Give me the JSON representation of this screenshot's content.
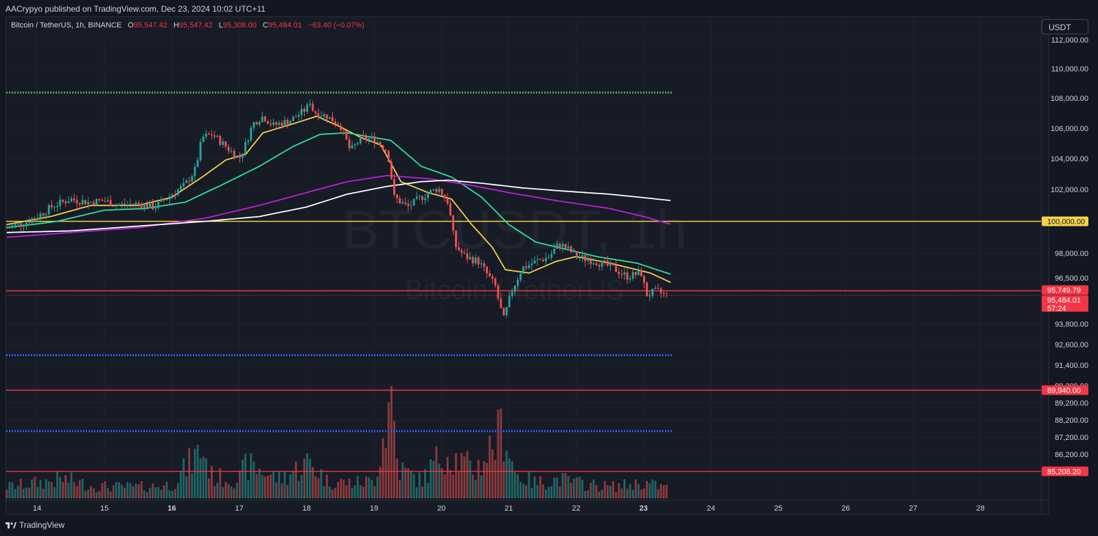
{
  "header": {
    "published": "AACrypyo published on TradingView.com, Dec 23, 2024 10:02 UTC+11"
  },
  "legend": {
    "symbol": "Bitcoin / TetherUS, 1h, BINANCE",
    "o_label": "O",
    "o_value": "95,547.42",
    "h_label": "H",
    "h_value": "95,547.42",
    "l_label": "L",
    "l_value": "95,308.00",
    "c_label": "C",
    "c_value": "95,484.01",
    "change": "−63.40 (−0.07%)"
  },
  "currency_button": "USDT",
  "watermark": {
    "main": "BTCUSDT, 1h",
    "sub": "Bitcoin / TetherUS"
  },
  "footer": {
    "brand": "TradingView"
  },
  "colors": {
    "background": "#131722",
    "plot_bg": "#171b26",
    "up": "#26a69a",
    "down": "#ef5350",
    "ema_fast": "#f5d24a",
    "ema_mid": "#2ee39a",
    "sma_200": "#c11fd8",
    "ema_200": "#ffffff",
    "level_green": "#4caf50",
    "level_blue": "#2962ff",
    "level_red": "#f23645",
    "level_yellow": "#f5d24a"
  },
  "chart_data": {
    "type": "candlestick",
    "symbol": "BTCUSDT",
    "timeframe": "1h",
    "y_axis": {
      "ticks": [
        {
          "value": 112000,
          "label": "112,000.00"
        },
        {
          "value": 110000,
          "label": "110,000.00"
        },
        {
          "value": 108000,
          "label": "108,000.00"
        },
        {
          "value": 106000,
          "label": "106,000.00"
        },
        {
          "value": 104000,
          "label": "104,000.00"
        },
        {
          "value": 102000,
          "label": "102,000.00"
        },
        {
          "value": 98000,
          "label": "98,000.00"
        },
        {
          "value": 96500,
          "label": "96,500.00"
        },
        {
          "value": 93800,
          "label": "93,800.00"
        },
        {
          "value": 92600,
          "label": "92,600.00"
        },
        {
          "value": 91400,
          "label": "91,400.00"
        },
        {
          "value": 90200,
          "label": "90,200.00"
        },
        {
          "value": 89200,
          "label": "89,200.00"
        },
        {
          "value": 88200,
          "label": "88,200.00"
        },
        {
          "value": 87200,
          "label": "87,200.00"
        },
        {
          "value": 86200,
          "label": "86,200.00"
        },
        {
          "value": 85200,
          "label": "85,200.00"
        }
      ]
    },
    "x_axis": {
      "ticks": [
        {
          "day": 14,
          "label": "14",
          "bold": false
        },
        {
          "day": 15,
          "label": "15",
          "bold": false
        },
        {
          "day": 16,
          "label": "16",
          "bold": true
        },
        {
          "day": 17,
          "label": "17",
          "bold": false
        },
        {
          "day": 18,
          "label": "18",
          "bold": false
        },
        {
          "day": 19,
          "label": "19",
          "bold": false
        },
        {
          "day": 20,
          "label": "20",
          "bold": false
        },
        {
          "day": 21,
          "label": "21",
          "bold": false
        },
        {
          "day": 22,
          "label": "22",
          "bold": false
        },
        {
          "day": 23,
          "label": "23",
          "bold": true
        },
        {
          "day": 24,
          "label": "24",
          "bold": false
        },
        {
          "day": 25,
          "label": "25",
          "bold": false
        },
        {
          "day": 26,
          "label": "26",
          "bold": false
        },
        {
          "day": 27,
          "label": "27",
          "bold": false
        },
        {
          "day": 28,
          "label": "28",
          "bold": false
        }
      ]
    },
    "price_anchors": [
      [
        13.55,
        99600
      ],
      [
        13.8,
        99900
      ],
      [
        14.0,
        100300
      ],
      [
        14.25,
        101000
      ],
      [
        14.5,
        101400
      ],
      [
        14.75,
        101200
      ],
      [
        15.0,
        101300
      ],
      [
        15.2,
        101000
      ],
      [
        15.5,
        101100
      ],
      [
        15.75,
        100900
      ],
      [
        16.0,
        101700
      ],
      [
        16.2,
        102300
      ],
      [
        16.35,
        103300
      ],
      [
        16.45,
        105400
      ],
      [
        16.6,
        105600
      ],
      [
        16.8,
        104800
      ],
      [
        17.0,
        104000
      ],
      [
        17.1,
        105000
      ],
      [
        17.2,
        106300
      ],
      [
        17.35,
        106800
      ],
      [
        17.5,
        106200
      ],
      [
        17.75,
        106500
      ],
      [
        18.0,
        107300
      ],
      [
        18.05,
        107800
      ],
      [
        18.1,
        107100
      ],
      [
        18.3,
        106800
      ],
      [
        18.5,
        106200
      ],
      [
        18.65,
        104500
      ],
      [
        18.8,
        105300
      ],
      [
        19.0,
        105300
      ],
      [
        19.2,
        104500
      ],
      [
        19.3,
        101500
      ],
      [
        19.5,
        100900
      ],
      [
        19.7,
        101500
      ],
      [
        19.95,
        102100
      ],
      [
        20.1,
        101200
      ],
      [
        20.2,
        98500
      ],
      [
        20.35,
        97800
      ],
      [
        20.55,
        97500
      ],
      [
        20.8,
        96000
      ],
      [
        20.92,
        94000
      ],
      [
        21.05,
        95800
      ],
      [
        21.2,
        97100
      ],
      [
        21.4,
        97500
      ],
      [
        21.6,
        97800
      ],
      [
        21.75,
        98600
      ],
      [
        21.9,
        98200
      ],
      [
        22.0,
        97800
      ],
      [
        22.3,
        97500
      ],
      [
        22.55,
        97100
      ],
      [
        22.75,
        96600
      ],
      [
        22.98,
        96800
      ],
      [
        23.03,
        95500
      ],
      [
        23.2,
        95700
      ],
      [
        23.35,
        95484
      ]
    ],
    "volume_anchors": [
      [
        13.55,
        1.2
      ],
      [
        14.0,
        1.6
      ],
      [
        14.4,
        2.0
      ],
      [
        14.8,
        1.3
      ],
      [
        15.2,
        1.2
      ],
      [
        15.6,
        1.2
      ],
      [
        16.0,
        1.4
      ],
      [
        16.45,
        5.2
      ],
      [
        16.6,
        2.2
      ],
      [
        17.0,
        2.0
      ],
      [
        17.1,
        3.4
      ],
      [
        17.3,
        3.0
      ],
      [
        17.6,
        2.0
      ],
      [
        18.05,
        3.8
      ],
      [
        18.3,
        1.8
      ],
      [
        18.7,
        1.6
      ],
      [
        19.0,
        1.8
      ],
      [
        19.27,
        11.0
      ],
      [
        19.35,
        3.2
      ],
      [
        19.7,
        1.8
      ],
      [
        20.05,
        5.0
      ],
      [
        20.2,
        4.2
      ],
      [
        20.5,
        2.8
      ],
      [
        20.85,
        6.5
      ],
      [
        20.92,
        7.6
      ],
      [
        21.1,
        2.5
      ],
      [
        21.4,
        1.6
      ],
      [
        21.75,
        2.0
      ],
      [
        22.0,
        1.6
      ],
      [
        22.5,
        1.2
      ],
      [
        23.0,
        1.6
      ],
      [
        23.35,
        1.1
      ]
    ],
    "moving_averages": [
      {
        "label": "EMA fast",
        "color": "#f5d24a",
        "anchors": [
          [
            13.55,
            99800
          ],
          [
            14.2,
            100300
          ],
          [
            14.8,
            101000
          ],
          [
            15.5,
            101000
          ],
          [
            16.0,
            101500
          ],
          [
            16.45,
            102800
          ],
          [
            16.8,
            103900
          ],
          [
            17.1,
            104300
          ],
          [
            17.35,
            105700
          ],
          [
            17.8,
            106300
          ],
          [
            18.15,
            106800
          ],
          [
            18.5,
            106100
          ],
          [
            18.8,
            105400
          ],
          [
            19.1,
            104900
          ],
          [
            19.4,
            102500
          ],
          [
            19.8,
            101800
          ],
          [
            20.15,
            101400
          ],
          [
            20.45,
            99800
          ],
          [
            20.75,
            98400
          ],
          [
            20.95,
            97000
          ],
          [
            21.3,
            96800
          ],
          [
            21.7,
            97500
          ],
          [
            22.0,
            97800
          ],
          [
            22.5,
            97400
          ],
          [
            22.9,
            97000
          ],
          [
            23.1,
            96800
          ],
          [
            23.42,
            96200
          ]
        ]
      },
      {
        "label": "EMA mid",
        "color": "#2ee39a",
        "anchors": [
          [
            13.55,
            99600
          ],
          [
            14.3,
            100000
          ],
          [
            15.0,
            100700
          ],
          [
            15.6,
            100800
          ],
          [
            16.2,
            101200
          ],
          [
            16.7,
            102200
          ],
          [
            17.3,
            103500
          ],
          [
            17.8,
            104800
          ],
          [
            18.2,
            105600
          ],
          [
            18.6,
            105700
          ],
          [
            19.25,
            105200
          ],
          [
            19.7,
            103500
          ],
          [
            20.15,
            102800
          ],
          [
            20.6,
            101500
          ],
          [
            21.0,
            99800
          ],
          [
            21.4,
            98700
          ],
          [
            21.8,
            98300
          ],
          [
            22.3,
            97800
          ],
          [
            22.9,
            97400
          ],
          [
            23.42,
            96700
          ]
        ]
      },
      {
        "label": "SMA 200",
        "color": "#c11fd8",
        "anchors": [
          [
            13.55,
            99000
          ],
          [
            14.5,
            99300
          ],
          [
            15.5,
            99600
          ],
          [
            16.5,
            100200
          ],
          [
            17.3,
            101000
          ],
          [
            18.0,
            101800
          ],
          [
            18.6,
            102500
          ],
          [
            19.2,
            102900
          ],
          [
            19.8,
            102700
          ],
          [
            20.4,
            102300
          ],
          [
            21.0,
            101800
          ],
          [
            21.7,
            101300
          ],
          [
            22.5,
            100800
          ],
          [
            23.0,
            100300
          ],
          [
            23.42,
            99800
          ]
        ]
      },
      {
        "label": "EMA 200",
        "color": "#ffffff",
        "anchors": [
          [
            13.55,
            99300
          ],
          [
            14.5,
            99400
          ],
          [
            15.5,
            99700
          ],
          [
            16.5,
            100000
          ],
          [
            17.3,
            100300
          ],
          [
            18.0,
            100900
          ],
          [
            18.6,
            101700
          ],
          [
            19.2,
            102200
          ],
          [
            19.7,
            102500
          ],
          [
            20.1,
            102600
          ],
          [
            20.6,
            102400
          ],
          [
            21.2,
            102100
          ],
          [
            21.8,
            101900
          ],
          [
            22.5,
            101700
          ],
          [
            23.42,
            101300
          ]
        ]
      }
    ],
    "horizontal_levels": [
      {
        "price": 108380,
        "color": "#4caf50",
        "style": "dotted",
        "label": ""
      },
      {
        "price": 100000,
        "color": "#f5d24a",
        "style": "solid",
        "label": "100,000.00"
      },
      {
        "price": 95749.79,
        "color": "#f23645",
        "style": "solid",
        "label": "95,749.79"
      },
      {
        "price": 95484.01,
        "color": "#f23645",
        "style": "dotted",
        "label": "95,484.01"
      },
      {
        "price": 91980,
        "color": "#2962ff",
        "style": "dotted",
        "label": ""
      },
      {
        "price": 89940,
        "color": "#f23645",
        "style": "solid",
        "label": "89,940.00"
      },
      {
        "price": 87550,
        "color": "#2962ff",
        "style": "dotted",
        "label": ""
      },
      {
        "price": 85208.2,
        "color": "#f23645",
        "style": "solid",
        "label": "85,208.20"
      }
    ],
    "countdown": "57:24",
    "last_price": 95484.01
  }
}
